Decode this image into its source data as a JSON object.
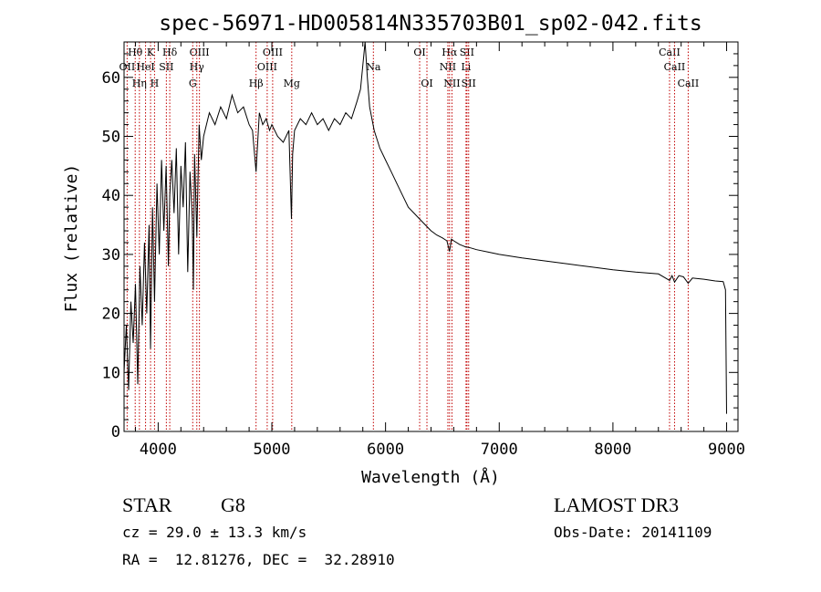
{
  "chart_data": {
    "type": "line",
    "title": "spec-56971-HD005814N335703B01_sp02-042.fits",
    "xlabel": "Wavelength (Å)",
    "ylabel": "Flux (relative)",
    "xlim": [
      3700,
      9100
    ],
    "ylim": [
      0,
      66
    ],
    "x_ticks": [
      4000,
      5000,
      6000,
      7000,
      8000,
      9000
    ],
    "y_ticks": [
      0,
      10,
      20,
      30,
      40,
      50,
      60
    ],
    "grid": false,
    "series": [
      {
        "x": [
          3700,
          3720,
          3740,
          3760,
          3780,
          3800,
          3820,
          3840,
          3860,
          3880,
          3900,
          3920,
          3933,
          3950,
          3968,
          3990,
          4010,
          4030,
          4050,
          4070,
          4090,
          4102,
          4120,
          4140,
          4160,
          4180,
          4200,
          4220,
          4240,
          4260,
          4280,
          4300,
          4310,
          4320,
          4340,
          4360,
          4380,
          4400,
          4450,
          4500,
          4550,
          4600,
          4650,
          4700,
          4750,
          4800,
          4830,
          4861,
          4890,
          4920,
          4950,
          4980,
          5000,
          5050,
          5100,
          5150,
          5172,
          5183,
          5200,
          5250,
          5300,
          5350,
          5400,
          5450,
          5500,
          5550,
          5600,
          5650,
          5700,
          5750,
          5780,
          5800,
          5820,
          5840,
          5860,
          5880,
          5900,
          5950,
          6000,
          6050,
          6100,
          6150,
          6200,
          6250,
          6300,
          6350,
          6400,
          6450,
          6500,
          6540,
          6563,
          6580,
          6600,
          6650,
          6700,
          6750,
          6800,
          6900,
          7000,
          7200,
          7400,
          7600,
          7800,
          8000,
          8200,
          8400,
          8498,
          8520,
          8542,
          8580,
          8620,
          8662,
          8700,
          8800,
          8900,
          8970,
          8990,
          9000
        ],
        "y": [
          10,
          18,
          7,
          22,
          15,
          25,
          8,
          28,
          18,
          32,
          20,
          35,
          14,
          38,
          22,
          42,
          30,
          46,
          34,
          45,
          28,
          40,
          46,
          37,
          48,
          30,
          45,
          38,
          49,
          27,
          44,
          36,
          24,
          47,
          33,
          52,
          46,
          50,
          54,
          52,
          55,
          53,
          57,
          54,
          55,
          52,
          51,
          44,
          54,
          52,
          53,
          51,
          52,
          50,
          49,
          51,
          36,
          47,
          51,
          53,
          52,
          54,
          52,
          53,
          51,
          53,
          52,
          54,
          53,
          56,
          58,
          62,
          66,
          60,
          55,
          53,
          51,
          48,
          46,
          44,
          42,
          40,
          38,
          37,
          36,
          35,
          34,
          33.3,
          32.8,
          32.3,
          30.5,
          32.6,
          32.3,
          31.7,
          31.3,
          31.1,
          30.8,
          30.4,
          30.0,
          29.4,
          28.9,
          28.4,
          27.9,
          27.4,
          27.0,
          26.7,
          25.6,
          26.4,
          25.3,
          26.4,
          26.2,
          25.1,
          26.0,
          25.8,
          25.5,
          25.4,
          24.0,
          3.0
        ]
      }
    ],
    "line_markers": [
      {
        "label": "Hθ",
        "x": 3798,
        "row": 0
      },
      {
        "label": "K",
        "x": 3933,
        "row": 0
      },
      {
        "label": "Hδ",
        "x": 4102,
        "row": 0
      },
      {
        "label": "OIII",
        "x": 4363,
        "row": 0
      },
      {
        "label": "OIII",
        "x": 5007,
        "row": 0
      },
      {
        "label": "OI",
        "x": 6300,
        "row": 0
      },
      {
        "label": "Hα",
        "x": 6563,
        "row": 0
      },
      {
        "label": "SII",
        "x": 6716,
        "row": 0
      },
      {
        "label": "CaII",
        "x": 8498,
        "row": 0
      },
      {
        "label": "OII",
        "x": 3727,
        "row": 1
      },
      {
        "label": "HeI",
        "x": 3889,
        "row": 1
      },
      {
        "label": "SII",
        "x": 4072,
        "row": 1
      },
      {
        "label": "Hγ",
        "x": 4340,
        "row": 1
      },
      {
        "label": "OIII",
        "x": 4959,
        "row": 1
      },
      {
        "label": "Na",
        "x": 5893,
        "row": 1
      },
      {
        "label": "NII",
        "x": 6548,
        "row": 1
      },
      {
        "label": "Li",
        "x": 6708,
        "row": 1
      },
      {
        "label": "CaII",
        "x": 8542,
        "row": 1
      },
      {
        "label": "Hη",
        "x": 3835,
        "row": 2
      },
      {
        "label": "H",
        "x": 3968,
        "row": 2
      },
      {
        "label": "G",
        "x": 4304,
        "row": 2
      },
      {
        "label": "Hβ",
        "x": 4861,
        "row": 2
      },
      {
        "label": "Mg",
        "x": 5175,
        "row": 2
      },
      {
        "label": "OI",
        "x": 6364,
        "row": 2
      },
      {
        "label": "NII",
        "x": 6584,
        "row": 2
      },
      {
        "label": "SII",
        "x": 6731,
        "row": 2
      },
      {
        "label": "CaII",
        "x": 8662,
        "row": 2
      }
    ],
    "marker_color": "#c00000"
  },
  "info": {
    "class_label": "STAR",
    "subclass": "G8",
    "survey": "LAMOST DR3",
    "cz_line": "cz = 29.0 ± 13.3 km/s",
    "obs_date_line": "Obs-Date: 20141109",
    "radec_line": "RA =  12.81276, DEC =  32.28910"
  }
}
